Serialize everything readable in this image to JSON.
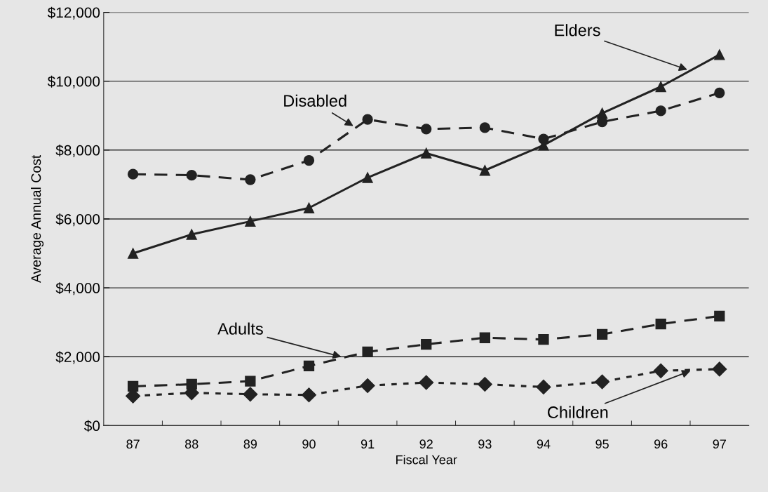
{
  "chart_data": {
    "type": "line",
    "xlabel": "Fiscal Year",
    "ylabel": "Average Annual Cost",
    "categories": [
      "87",
      "88",
      "89",
      "90",
      "91",
      "92",
      "93",
      "94",
      "95",
      "96",
      "97"
    ],
    "series": [
      {
        "name": "Elders",
        "color": "#222222",
        "marker": "triangle",
        "line_style": "solid",
        "values": [
          5000,
          5550,
          5930,
          6320,
          7200,
          7910,
          7410,
          8140,
          9070,
          9840,
          10770
        ]
      },
      {
        "name": "Disabled",
        "color": "#222222",
        "marker": "circle",
        "line_style": "dashed",
        "values": [
          7300,
          7270,
          7140,
          7700,
          8890,
          8610,
          8650,
          8320,
          8820,
          9140,
          9660
        ]
      },
      {
        "name": "Adults",
        "color": "#222222",
        "marker": "square",
        "line_style": "dashed",
        "values": [
          1140,
          1200,
          1290,
          1730,
          2140,
          2360,
          2550,
          2500,
          2650,
          2950,
          3180
        ]
      },
      {
        "name": "Children",
        "color": "#222222",
        "marker": "diamond",
        "line_style": "dotted",
        "values": [
          860,
          950,
          910,
          890,
          1160,
          1250,
          1200,
          1120,
          1270,
          1590,
          1640
        ]
      }
    ],
    "ylim": [
      0,
      12000
    ],
    "yticks": [
      {
        "value": 0,
        "label": "$0"
      },
      {
        "value": 2000,
        "label": "$2,000"
      },
      {
        "value": 4000,
        "label": "$4,000"
      },
      {
        "value": 6000,
        "label": "$6,000"
      },
      {
        "value": 8000,
        "label": "$8,000"
      },
      {
        "value": 10000,
        "label": "$10,000"
      },
      {
        "value": 12000,
        "label": "$12,000"
      }
    ],
    "grid": "y",
    "legend": false
  }
}
